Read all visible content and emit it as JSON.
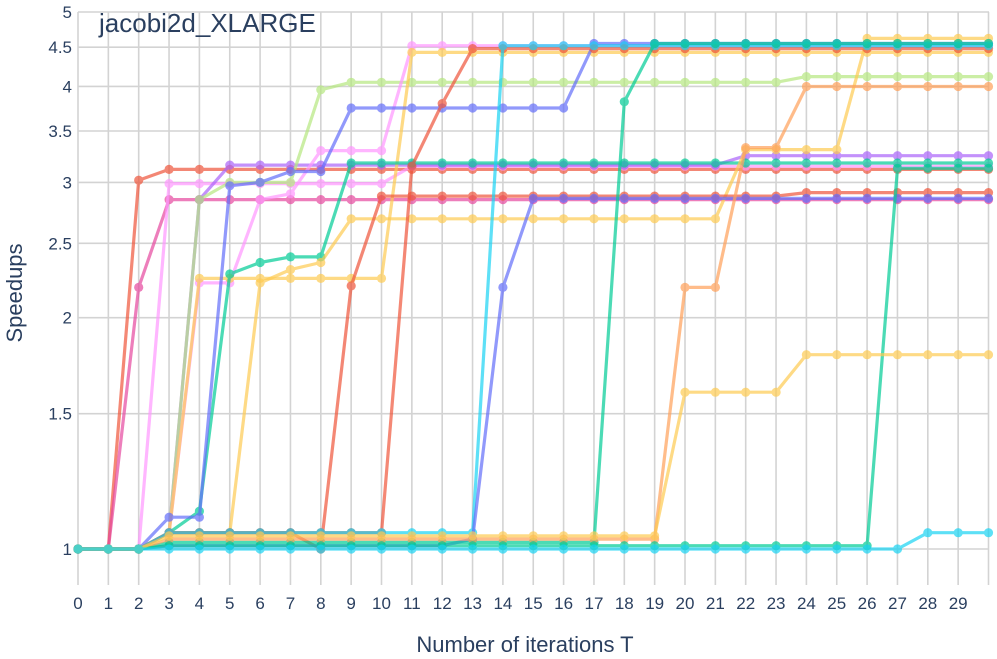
{
  "chart_data": {
    "type": "line",
    "title": "jacobi2d_XLARGE",
    "xlabel": "Number of iterations T",
    "ylabel": "Speedups",
    "x": [
      0,
      1,
      2,
      3,
      4,
      5,
      6,
      7,
      8,
      9,
      10,
      11,
      12,
      13,
      14,
      15,
      16,
      17,
      18,
      19,
      20,
      21,
      22,
      23,
      24,
      25,
      26,
      27,
      28,
      29,
      30
    ],
    "xticks": [
      0,
      1,
      2,
      3,
      4,
      5,
      6,
      7,
      8,
      9,
      10,
      11,
      12,
      13,
      14,
      15,
      16,
      17,
      18,
      19,
      20,
      21,
      22,
      23,
      24,
      25,
      26,
      27,
      28,
      29
    ],
    "yticks": [
      1,
      1.5,
      2,
      2.5,
      3,
      3.5,
      4,
      4.5,
      5
    ],
    "ytick_labels": [
      "1",
      "1.5",
      "2",
      "2.5",
      "3",
      "3.5",
      "4",
      "4.5",
      "5"
    ],
    "xlim": [
      0,
      30
    ],
    "ylim": [
      0.88,
      5.0
    ],
    "y_scale": "log",
    "grid": true,
    "legend": "none",
    "series": [
      {
        "color": "#ef553b",
        "values": [
          1,
          1,
          3.02,
          3.12,
          3.12,
          3.12,
          3.12,
          3.12,
          3.12,
          3.12,
          3.12,
          3.12,
          3.12,
          3.12,
          3.12,
          3.12,
          3.12,
          3.12,
          3.12,
          3.12,
          3.12,
          3.12,
          3.12,
          3.12,
          3.12,
          3.12,
          3.12,
          3.12,
          3.12,
          3.12,
          3.12
        ]
      },
      {
        "color": "#e6489f",
        "values": [
          1,
          1,
          2.19,
          2.85,
          2.85,
          2.85,
          2.85,
          2.85,
          2.85,
          2.85,
          2.85,
          2.85,
          2.85,
          2.85,
          2.85,
          2.85,
          2.85,
          2.85,
          2.85,
          2.85,
          2.85,
          2.85,
          2.85,
          2.85,
          2.85,
          2.85,
          2.85,
          2.85,
          2.85,
          2.85,
          2.85
        ]
      },
      {
        "color": "#ff97ff",
        "values": [
          1,
          1,
          1,
          2.99,
          2.99,
          2.99,
          2.99,
          2.99,
          2.99,
          2.99,
          2.99,
          3.15,
          3.15,
          3.15,
          3.15,
          3.15,
          3.15,
          3.15,
          3.15,
          3.15,
          3.15,
          3.15,
          3.15,
          3.15,
          3.15,
          3.15,
          3.15,
          3.15,
          3.15,
          3.15,
          3.15
        ]
      },
      {
        "color": "#ab63fa",
        "values": [
          1,
          1,
          1,
          1.05,
          2.85,
          3.16,
          3.16,
          3.16,
          3.16,
          3.16,
          3.16,
          3.16,
          3.16,
          3.16,
          3.16,
          3.16,
          3.16,
          3.16,
          3.16,
          3.16,
          3.16,
          3.16,
          3.25,
          3.25,
          3.25,
          3.25,
          3.25,
          3.25,
          3.25,
          3.25,
          3.25
        ]
      },
      {
        "color": "#b6e880",
        "values": [
          1,
          1,
          1,
          1.05,
          2.85,
          3.0,
          3.0,
          3.0,
          3.96,
          4.05,
          4.05,
          4.05,
          4.05,
          4.05,
          4.05,
          4.05,
          4.05,
          4.05,
          4.05,
          4.05,
          4.05,
          4.05,
          4.05,
          4.05,
          4.12,
          4.12,
          4.12,
          4.12,
          4.12,
          4.12,
          4.12
        ]
      },
      {
        "color": "#ff97ff",
        "values": [
          1,
          1,
          1,
          1.05,
          2.22,
          2.22,
          2.85,
          2.9,
          3.3,
          3.3,
          3.3,
          4.52,
          4.52,
          4.52,
          4.52,
          4.52,
          4.52,
          4.52,
          4.52,
          4.52,
          4.52,
          4.52,
          4.52,
          4.52,
          4.52,
          4.52,
          4.52,
          4.52,
          4.52,
          4.52,
          4.52
        ]
      },
      {
        "color": "#fecb52",
        "values": [
          1,
          1,
          1,
          1.05,
          2.25,
          2.25,
          2.25,
          2.25,
          2.25,
          2.25,
          2.25,
          4.43,
          4.43,
          4.43,
          4.43,
          4.43,
          4.43,
          4.43,
          4.43,
          4.43,
          4.43,
          4.43,
          4.43,
          4.43,
          4.43,
          4.43,
          4.43,
          4.43,
          4.43,
          4.43,
          4.43
        ]
      },
      {
        "color": "#00cc96",
        "values": [
          1,
          1,
          1,
          1.05,
          1.12,
          2.28,
          2.36,
          2.4,
          2.4,
          3.18,
          3.18,
          3.18,
          3.18,
          3.18,
          3.18,
          3.18,
          3.18,
          3.18,
          3.18,
          3.18,
          3.18,
          3.18,
          3.18,
          3.18,
          3.18,
          3.18,
          3.18,
          3.18,
          3.18,
          3.18,
          3.18
        ]
      },
      {
        "color": "#636efa",
        "values": [
          1,
          1,
          1,
          1.1,
          1.1,
          2.97,
          3.0,
          3.1,
          3.1,
          3.75,
          3.75,
          3.75,
          3.75,
          3.75,
          3.75,
          3.75,
          3.75,
          4.55,
          4.55,
          4.55,
          4.55,
          4.55,
          4.55,
          4.55,
          4.55,
          4.55,
          4.55,
          4.55,
          4.55,
          4.55,
          4.55
        ]
      },
      {
        "color": "#fecb52",
        "values": [
          1,
          1,
          1,
          1.05,
          1.05,
          1.05,
          2.22,
          2.31,
          2.36,
          2.69,
          2.69,
          2.69,
          2.69,
          2.69,
          2.69,
          2.69,
          2.69,
          2.69,
          2.69,
          2.69,
          2.69,
          2.69,
          3.31,
          3.31,
          3.31,
          3.31,
          4.62,
          4.62,
          4.62,
          4.62,
          4.62
        ]
      },
      {
        "color": "#ef553b",
        "values": [
          1,
          1,
          1,
          1.05,
          1.05,
          1.05,
          1.05,
          1.05,
          1.0,
          2.2,
          2.88,
          2.88,
          2.88,
          2.88,
          2.88,
          2.88,
          2.88,
          2.88,
          2.88,
          2.88,
          2.88,
          2.88,
          2.88,
          2.88,
          2.91,
          2.91,
          2.91,
          2.91,
          2.91,
          2.91,
          2.91
        ]
      },
      {
        "color": "#ef553b",
        "values": [
          1,
          1,
          1,
          1.05,
          1.05,
          1.05,
          1.05,
          1.05,
          1.05,
          1.05,
          1.05,
          3.15,
          3.8,
          4.48,
          4.48,
          4.48,
          4.48,
          4.48,
          4.48,
          4.48,
          4.48,
          4.48,
          4.48,
          4.48,
          4.48,
          4.48,
          4.48,
          4.48,
          4.48,
          4.48,
          4.48
        ]
      },
      {
        "color": "#19d3f3",
        "values": [
          1,
          1,
          1,
          1.05,
          1.05,
          1.05,
          1.05,
          1.05,
          1.05,
          1.05,
          1.05,
          1.05,
          1.05,
          1.05,
          4.52,
          4.52,
          4.52,
          4.52,
          4.52,
          4.52,
          4.52,
          4.52,
          4.52,
          4.52,
          4.52,
          4.52,
          4.52,
          4.52,
          4.52,
          4.52,
          4.52
        ]
      },
      {
        "color": "#636efa",
        "values": [
          1,
          1,
          1,
          1.01,
          1.01,
          1.01,
          1.01,
          1.01,
          1.01,
          1.01,
          1.01,
          1.01,
          1.01,
          1.03,
          2.19,
          2.86,
          2.86,
          2.86,
          2.86,
          2.86,
          2.86,
          2.86,
          2.86,
          2.86,
          2.86,
          2.86,
          2.86,
          2.86,
          2.86,
          2.86,
          2.86
        ]
      },
      {
        "color": "#00cc96",
        "values": [
          1,
          1,
          1,
          1.02,
          1.02,
          1.02,
          1.02,
          1.02,
          1.02,
          1.02,
          1.02,
          1.02,
          1.02,
          1.02,
          1.02,
          1.02,
          1.02,
          1.02,
          3.82,
          4.55,
          4.55,
          4.55,
          4.55,
          4.55,
          4.55,
          4.55,
          4.55,
          4.55,
          4.55,
          4.55,
          4.55
        ]
      },
      {
        "color": "#ffa15a",
        "values": [
          1,
          1,
          1,
          1.03,
          1.03,
          1.03,
          1.03,
          1.03,
          1.03,
          1.03,
          1.03,
          1.03,
          1.03,
          1.03,
          1.03,
          1.03,
          1.03,
          1.03,
          1.03,
          1.03,
          2.19,
          2.19,
          3.33,
          3.33,
          4.0,
          4.0,
          4.0,
          4.0,
          4.0,
          4.0,
          4.0
        ]
      },
      {
        "color": "#00cc96",
        "values": [
          1,
          1,
          1,
          1.01,
          1.01,
          1.01,
          1.01,
          1.01,
          1.01,
          1.01,
          1.01,
          1.01,
          1.01,
          1.01,
          1.01,
          1.01,
          1.01,
          1.01,
          1.01,
          1.01,
          1.01,
          1.01,
          1.01,
          1.01,
          1.01,
          1.01,
          1.01,
          3.13,
          3.13,
          3.13,
          3.13
        ]
      },
      {
        "color": "#fecb52",
        "values": [
          1,
          1,
          1,
          1.04,
          1.04,
          1.04,
          1.04,
          1.04,
          1.04,
          1.04,
          1.04,
          1.04,
          1.04,
          1.04,
          1.04,
          1.04,
          1.04,
          1.04,
          1.04,
          1.04,
          1.6,
          1.6,
          1.6,
          1.6,
          1.79,
          1.79,
          1.79,
          1.79,
          1.79,
          1.79,
          1.79
        ]
      },
      {
        "color": "#19d3f3",
        "values": [
          1,
          1,
          1,
          1.0,
          1.0,
          1.0,
          1.0,
          1.0,
          1.0,
          1.0,
          1.0,
          1.0,
          1.0,
          1.0,
          1.0,
          1.0,
          1.0,
          1.0,
          1.0,
          1.0,
          1.0,
          1.0,
          1.0,
          1.0,
          1.0,
          1.0,
          1.0,
          1.0,
          1.05,
          1.05,
          1.05
        ]
      }
    ]
  }
}
